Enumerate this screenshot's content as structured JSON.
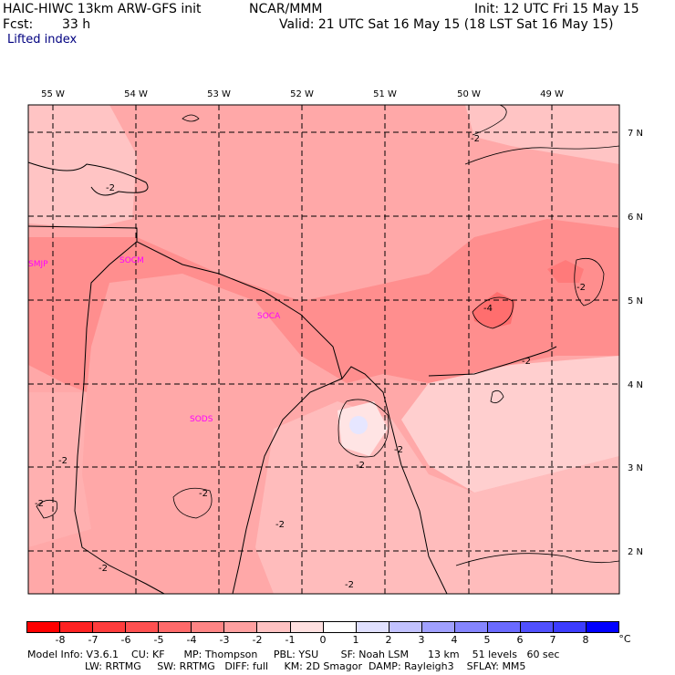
{
  "header": {
    "model_title": "HAIC-HIWC 13km ARW-GFS init",
    "source": "NCAR/MMM",
    "init": "Init: 12 UTC Fri 15 May 15",
    "forecast_label": "Fcst:",
    "forecast_hours": "33 h",
    "valid": "Valid: 21 UTC Sat 16 May 15 (18 LST Sat 16 May 15)",
    "field_name": "Lifted index"
  },
  "longitudes": [
    "55 W",
    "54 W",
    "53 W",
    "52 W",
    "51 W",
    "50 W",
    "49 W"
  ],
  "latitudes": [
    "7 N",
    "6 N",
    "5 N",
    "4 N",
    "3 N",
    "2 N"
  ],
  "stations": [
    "SMJP",
    "SOCM",
    "SOCA",
    "SODS"
  ],
  "contour_labels": [
    "-2",
    "-2",
    "-4",
    "-2",
    "-2",
    "-2",
    "-2",
    "-2",
    "-2",
    "-2",
    "-2",
    "-2",
    "-2"
  ],
  "colorbar": {
    "values": [
      "-8",
      "-7",
      "-6",
      "-5",
      "-4",
      "-3",
      "-2",
      "-1",
      "0",
      "1",
      "2",
      "3",
      "4",
      "5",
      "6",
      "7",
      "8"
    ],
    "unit": "°C",
    "colors": [
      "#ff0000",
      "#ff2222",
      "#ff3c3c",
      "#ff5050",
      "#ff6a6a",
      "#ff8585",
      "#ffa0a0",
      "#ffc2c2",
      "#ffe0e0",
      "#ffffff",
      "#e0e0ff",
      "#c2c2ff",
      "#a0a0ff",
      "#8585ff",
      "#6a6aff",
      "#5050ff",
      "#3c3cff",
      "#0000ff"
    ]
  },
  "info": {
    "line1": "Model Info: V3.6.1    CU: KF      MP: Thompson     PBL: YSU       SF: Noah LSM      13 km    51 levels   60 sec",
    "line2": "                  LW: RRTMG     SW: RRTMG   DIFF: full     KM: 2D Smagor  DAMP: Rayleigh3    SFLAY: MM5"
  }
}
